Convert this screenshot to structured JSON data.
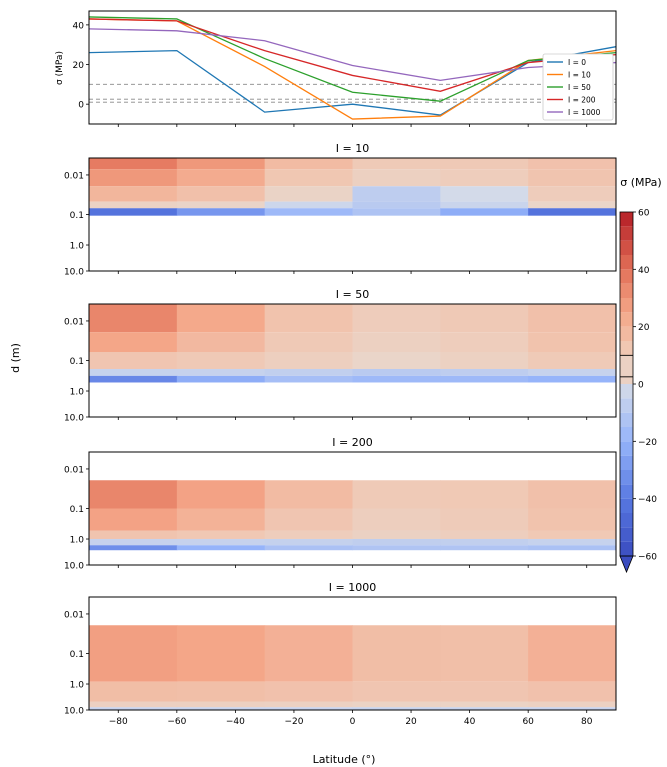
{
  "chart_data": [
    {
      "type": "line",
      "ylabel": "σ (MPa)",
      "x": [
        -90,
        -60,
        -30,
        0,
        30,
        60,
        90
      ],
      "xlim": [
        -90,
        90
      ],
      "ylim": [
        -10,
        47
      ],
      "yticks": [
        0,
        20,
        40
      ],
      "hlines": [
        10,
        2.5,
        1
      ],
      "legend_position": "right",
      "series": [
        {
          "name": "I = 0",
          "color": "#1f77b4",
          "values": [
            26,
            27,
            -4,
            0,
            -5.5,
            21,
            29
          ]
        },
        {
          "name": "I = 10",
          "color": "#ff7f0e",
          "values": [
            43,
            42,
            19,
            -7.5,
            -6,
            22,
            27
          ]
        },
        {
          "name": "I = 50",
          "color": "#2ca02c",
          "values": [
            44,
            43,
            23,
            6,
            1.5,
            22,
            26
          ]
        },
        {
          "name": "I = 200",
          "color": "#d62728",
          "values": [
            43,
            42,
            27,
            14.5,
            6.5,
            21,
            25
          ]
        },
        {
          "name": "I = 1000",
          "color": "#9467bd",
          "values": [
            38,
            37,
            32,
            19.5,
            12,
            18.5,
            21
          ]
        }
      ]
    },
    {
      "type": "heatmap",
      "title": "I = 10",
      "yticks": [
        "0.01",
        "0.1",
        "1.0",
        "10.0"
      ],
      "bands": [
        {
          "d_from": 0.001,
          "d_to": 0.0025,
          "values": [
            38,
            36,
            22,
            12,
            9,
            13,
            16
          ]
        },
        {
          "d_from": 0.0025,
          "d_to": 0.01,
          "values": [
            30,
            28,
            18,
            7,
            5,
            12,
            15
          ]
        },
        {
          "d_from": 0.01,
          "d_to": 0.035,
          "values": [
            20,
            18,
            12,
            -5,
            -10,
            8,
            10
          ]
        },
        {
          "d_from": 0.035,
          "d_to": 0.06,
          "values": [
            5,
            4,
            2,
            -8,
            -10,
            2,
            3
          ]
        },
        {
          "d_from": 0.06,
          "d_to": 0.11,
          "values": [
            -45,
            -40,
            -20,
            -15,
            -10,
            -35,
            -50
          ]
        }
      ]
    },
    {
      "type": "heatmap",
      "title": "I = 50",
      "yticks": [
        "0.01",
        "0.1",
        "1.0",
        "10.0"
      ],
      "bands": [
        {
          "d_from": 0.001,
          "d_to": 0.01,
          "values": [
            38,
            30,
            18,
            10,
            8,
            14,
            16
          ]
        },
        {
          "d_from": 0.01,
          "d_to": 0.05,
          "values": [
            28,
            22,
            14,
            8,
            4,
            13,
            15
          ]
        },
        {
          "d_from": 0.05,
          "d_to": 0.2,
          "values": [
            14,
            12,
            10,
            4,
            1,
            10,
            11
          ]
        },
        {
          "d_from": 0.2,
          "d_to": 0.35,
          "values": [
            -5,
            -5,
            -5,
            -8,
            -10,
            -5,
            -5
          ]
        },
        {
          "d_from": 0.35,
          "d_to": 0.6,
          "values": [
            -40,
            -30,
            -15,
            -15,
            -20,
            -15,
            -25
          ]
        }
      ]
    },
    {
      "type": "heatmap",
      "title": "I = 200",
      "yticks": [
        "0.01",
        "0.1",
        "1.0",
        "10.0"
      ],
      "bands": [
        {
          "d_from": 0.01,
          "d_to": 0.1,
          "values": [
            38,
            30,
            22,
            12,
            9,
            14,
            16
          ]
        },
        {
          "d_from": 0.1,
          "d_to": 0.6,
          "values": [
            28,
            24,
            17,
            9,
            6,
            13,
            15
          ]
        },
        {
          "d_from": 0.6,
          "d_to": 1.2,
          "values": [
            14,
            13,
            11,
            6,
            4,
            11,
            12
          ]
        },
        {
          "d_from": 1.2,
          "d_to": 2.0,
          "values": [
            -5,
            -5,
            -5,
            -6,
            -8,
            -5,
            -5
          ]
        },
        {
          "d_from": 2.0,
          "d_to": 3.0,
          "values": [
            -40,
            -25,
            -15,
            -12,
            -12,
            -12,
            -15
          ]
        }
      ]
    },
    {
      "type": "heatmap",
      "title": "I = 1000",
      "yticks": [
        "0.01",
        "0.1",
        "1.0",
        "10.0"
      ],
      "bands": [
        {
          "d_from": 0.01,
          "d_to": 1.0,
          "values": [
            28,
            26,
            24,
            18,
            14,
            17,
            25
          ]
        },
        {
          "d_from": 1.0,
          "d_to": 5.0,
          "values": [
            16,
            16,
            15,
            14,
            12,
            14,
            15
          ]
        },
        {
          "d_from": 5.0,
          "d_to": 8.0,
          "values": [
            6,
            6,
            6,
            5,
            3,
            5,
            6
          ]
        },
        {
          "d_from": 8.0,
          "d_to": 10.0,
          "values": [
            -5,
            -5,
            -5,
            -5,
            -6,
            -5,
            -5
          ]
        }
      ]
    }
  ],
  "xticks": [
    -80,
    -60,
    -40,
    -20,
    0,
    20,
    40,
    60,
    80
  ],
  "xlabel": "Latitude (°)",
  "ylabel_shared": "d (m)",
  "colorbar": {
    "label": "σ (MPa)",
    "ticks": [
      60,
      40,
      20,
      0,
      -20,
      -40,
      -60
    ],
    "levels": [
      -60,
      -55,
      -50,
      -45,
      -40,
      -35,
      -30,
      -25,
      -20,
      -15,
      -10,
      -5,
      0,
      10,
      15,
      20,
      25,
      30,
      35,
      40,
      45,
      50,
      55,
      60
    ]
  }
}
